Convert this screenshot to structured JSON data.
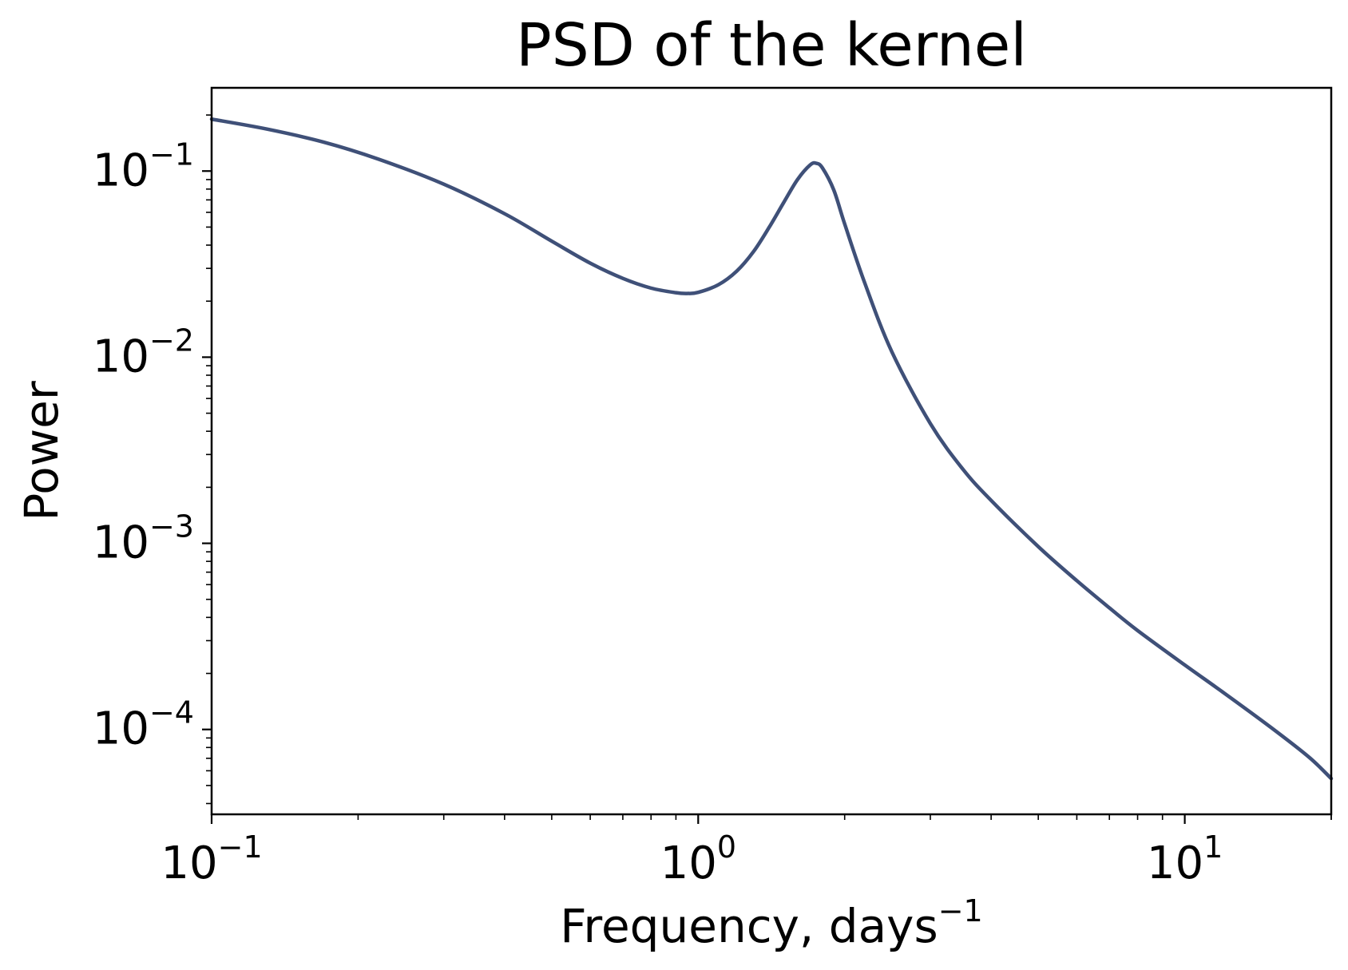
{
  "chart_data": {
    "type": "line",
    "title": "PSD of the kernel",
    "xlabel": "Frequency, days",
    "xlabel_exponent": "−1",
    "ylabel": "Power",
    "xscale": "log",
    "yscale": "log",
    "xlim": [
      0.1,
      20
    ],
    "ylim": [
      3.5e-05,
      0.28
    ],
    "grid": false,
    "x_ticks": [
      {
        "value": 0.1,
        "base": "10",
        "exp": "−1"
      },
      {
        "value": 1,
        "base": "10",
        "exp": "0"
      },
      {
        "value": 10,
        "base": "10",
        "exp": "1"
      }
    ],
    "y_ticks": [
      {
        "value": 0.1,
        "base": "10",
        "exp": "−1"
      },
      {
        "value": 0.01,
        "base": "10",
        "exp": "−2"
      },
      {
        "value": 0.001,
        "base": "10",
        "exp": "−3"
      },
      {
        "value": 0.0001,
        "base": "10",
        "exp": "−4"
      }
    ],
    "series": [
      {
        "color": "#3f5078",
        "x": [
          0.1,
          0.13,
          0.17,
          0.22,
          0.3,
          0.4,
          0.5,
          0.6,
          0.7,
          0.8,
          0.9,
          0.95,
          1.0,
          1.1,
          1.2,
          1.3,
          1.4,
          1.5,
          1.6,
          1.7,
          1.75,
          1.8,
          1.9,
          2.0,
          2.2,
          2.5,
          3.0,
          3.5,
          4.0,
          5.0,
          6.0,
          7.0,
          8.0,
          10.0,
          12.0,
          15.0,
          18.0,
          20.0
        ],
        "y": [
          0.19,
          0.168,
          0.143,
          0.116,
          0.085,
          0.059,
          0.042,
          0.032,
          0.0265,
          0.0235,
          0.0222,
          0.022,
          0.0223,
          0.0245,
          0.029,
          0.037,
          0.05,
          0.068,
          0.09,
          0.108,
          0.11,
          0.104,
          0.079,
          0.052,
          0.025,
          0.0107,
          0.0044,
          0.0025,
          0.0017,
          0.00096,
          0.00063,
          0.00045,
          0.00034,
          0.000222,
          0.000158,
          0.000103,
          7.1e-05,
          5.45e-05
        ]
      }
    ]
  }
}
